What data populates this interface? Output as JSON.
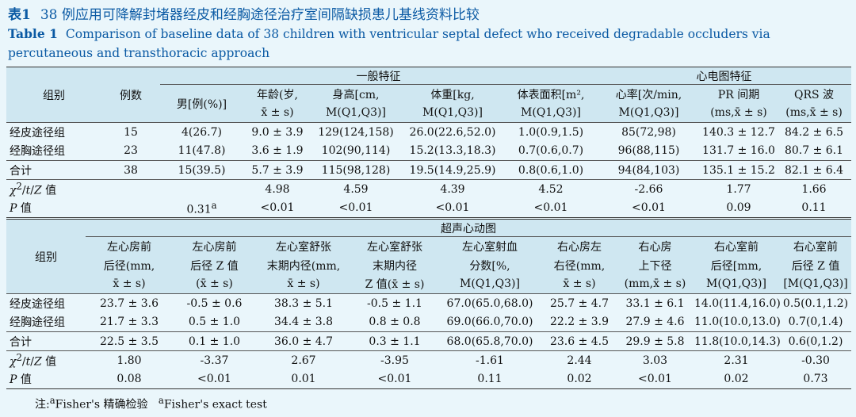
{
  "caption": {
    "cn_label": "表1",
    "cn_title": "38 例应用可降解封堵器经皮和经胸途径治疗室间隔缺损患儿基线资料比较",
    "en_label": "Table 1",
    "en_title": "Comparison of baseline data of 38 children with ventricular septal defect who received degradable occluders via percutaneous and transthoracic approach"
  },
  "t1": {
    "h_group": "组别",
    "h_cases": "例数",
    "h_general": "一般特征",
    "h_ecg": "心电图特征",
    "cols": [
      {
        "a": "男[例(%)]",
        "b": ""
      },
      {
        "a": "年龄(岁,",
        "b": "x̄ ± s)"
      },
      {
        "a": "身高[cm,",
        "b": "M(Q1,Q3)]"
      },
      {
        "a": "体重[kg,",
        "b": "M(Q1,Q3)]"
      },
      {
        "a": "体表面积[m²,",
        "b": "M(Q1,Q3)]"
      },
      {
        "a": "心率[次/min,",
        "b": "M(Q1,Q3)]"
      },
      {
        "a": "PR 间期",
        "b": "(ms,x̄ ± s)"
      },
      {
        "a": "QRS 波",
        "b": "(ms,x̄ ± s)"
      }
    ],
    "rows": [
      {
        "label": "经皮途径组",
        "cells": [
          "15",
          "4(26.7)",
          "9.0 ± 3.9",
          "129(124,158)",
          "26.0(22.6,52.0)",
          "1.0(0.9,1.5)",
          "85(72,98)",
          "140.3 ± 12.7",
          "84.2 ± 6.5"
        ]
      },
      {
        "label": "经胸途径组",
        "cells": [
          "23",
          "11(47.8)",
          "3.6 ± 1.9",
          "102(90,114)",
          "15.2(13.3,18.3)",
          "0.7(0.6,0.7)",
          "96(88,115)",
          "131.7 ± 16.0",
          "80.7 ± 6.1"
        ]
      },
      {
        "label": "合计",
        "cells": [
          "38",
          "15(39.5)",
          "5.7 ± 3.9",
          "115(98,128)",
          "19.5(14.9,25.9)",
          "0.8(0.6,1.0)",
          "94(84,103)",
          "135.1 ± 15.2",
          "82.1 ± 6.4"
        ]
      }
    ],
    "stat_label_tail": "值",
    "stat_values": [
      "",
      "",
      "4.98",
      "4.59",
      "4.39",
      "4.52",
      "-2.66",
      "1.77",
      "1.66"
    ],
    "p_label_tail": "值",
    "p_values": [
      "",
      "0.31",
      "<0.01",
      "<0.01",
      "<0.01",
      "<0.01",
      "<0.01",
      "0.09",
      "0.11"
    ],
    "p_sup": "a"
  },
  "t2": {
    "h_group": "组别",
    "h_echo": "超声心动图",
    "cols": [
      {
        "a": "左心房前",
        "b": "后径(mm,",
        "c": "x̄ ± s)"
      },
      {
        "a": "左心房前",
        "b": "后径 Z 值",
        "c": "(x̄ ± s)"
      },
      {
        "a": "左心室舒张",
        "b": "末期内径(mm,",
        "c": "x̄ ± s)"
      },
      {
        "a": "左心室舒张",
        "b": "末期内径",
        "c": "Z 值(x̄ ± s)"
      },
      {
        "a": "左心室射血",
        "b": "分数[%,",
        "c": "M(Q1,Q3)]"
      },
      {
        "a": "右心房左",
        "b": "右径(mm,",
        "c": "x̄ ± s)"
      },
      {
        "a": "右心房",
        "b": "上下径",
        "c": "(mm,x̄ ± s)"
      },
      {
        "a": "右心室前",
        "b": "后径[mm,",
        "c": "M(Q1,Q3)]"
      },
      {
        "a": "右心室前",
        "b": "后径 Z 值",
        "c": "[M(Q1,Q3)]"
      }
    ],
    "rows": [
      {
        "label": "经皮途径组",
        "cells": [
          "23.7 ± 3.6",
          "-0.5 ± 0.6",
          "38.3 ± 5.1",
          "-0.5 ± 1.1",
          "67.0(65.0,68.0)",
          "25.7 ± 4.7",
          "33.1 ± 6.1",
          "14.0(11.4,16.0)",
          "0.5(0.1,1.2)"
        ]
      },
      {
        "label": "经胸途径组",
        "cells": [
          "21.7 ± 3.3",
          "0.5 ± 1.0",
          "34.4 ± 3.8",
          "0.8 ± 0.8",
          "69.0(66.0,70.0)",
          "22.2 ± 3.9",
          "27.9 ± 4.6",
          "11.0(10.0,13.0)",
          "0.7(0,1.4)"
        ]
      },
      {
        "label": "合计",
        "cells": [
          "22.5 ± 3.5",
          "0.1 ± 1.0",
          "36.0 ± 4.7",
          "0.3 ± 1.1",
          "68.0(65.8,70.0)",
          "23.6 ± 4.5",
          "29.9 ± 5.8",
          "11.8(10.0,14.3)",
          "0.6(0,1.2)"
        ]
      }
    ],
    "stat_values": [
      "1.80",
      "-3.37",
      "2.67",
      "-3.95",
      "-1.61",
      "2.44",
      "3.03",
      "2.31",
      "-0.30"
    ],
    "p_values": [
      "0.08",
      "<0.01",
      "0.01",
      "<0.01",
      "0.11",
      "0.02",
      "<0.01",
      "0.02",
      "0.73"
    ]
  },
  "note": {
    "prefix": "注:",
    "sup": "a",
    "cn": "Fisher's 精确检验",
    "en": "Fisher's exact test"
  }
}
